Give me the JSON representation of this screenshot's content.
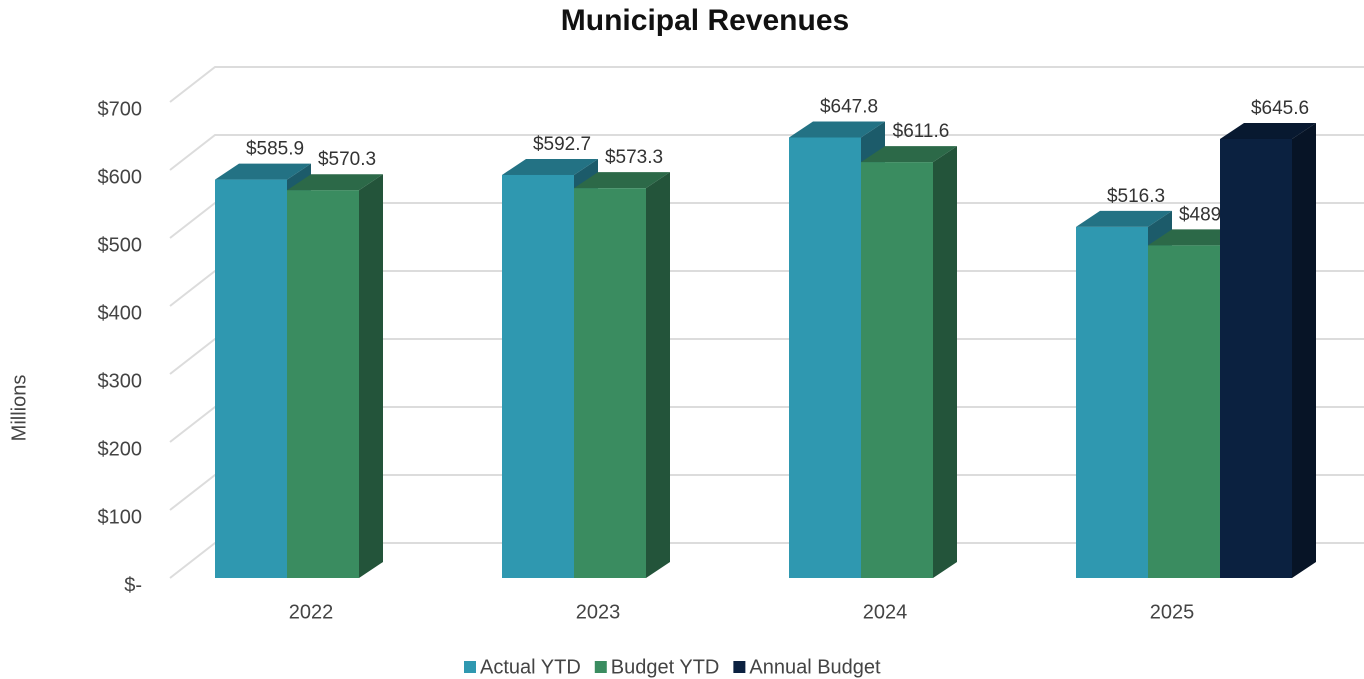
{
  "chart_data": {
    "type": "bar3d",
    "title": "Municipal Revenues",
    "y_label": "Millions",
    "categories": [
      "2022",
      "2023",
      "2024",
      "2025"
    ],
    "series": [
      {
        "name": "Actual YTD",
        "color": "#2f98b0",
        "values": [
          585.9,
          592.7,
          647.8,
          516.3
        ],
        "value_labels": [
          "$585.9",
          "$592.7",
          "$647.8",
          "$516.3"
        ]
      },
      {
        "name": "Budget YTD",
        "color": "#3a8c60",
        "values": [
          570.3,
          573.3,
          611.6,
          489.1
        ],
        "value_labels": [
          "$570.3",
          "$573.3",
          "$611.6",
          "$489.1"
        ]
      },
      {
        "name": "Annual Budget",
        "color": "#0b2140",
        "values": [
          null,
          null,
          null,
          645.6
        ],
        "value_labels": [
          null,
          null,
          null,
          "$645.6"
        ]
      }
    ],
    "ylim": [
      0,
      700
    ],
    "yticks": [
      {
        "value": 0,
        "label": "$-"
      },
      {
        "value": 100,
        "label": "$100"
      },
      {
        "value": 200,
        "label": "$200"
      },
      {
        "value": 300,
        "label": "$300"
      },
      {
        "value": 400,
        "label": "$400"
      },
      {
        "value": 500,
        "label": "$500"
      },
      {
        "value": 600,
        "label": "$600"
      },
      {
        "value": 700,
        "label": "$700"
      }
    ],
    "grid": true,
    "legend": "bottom"
  }
}
